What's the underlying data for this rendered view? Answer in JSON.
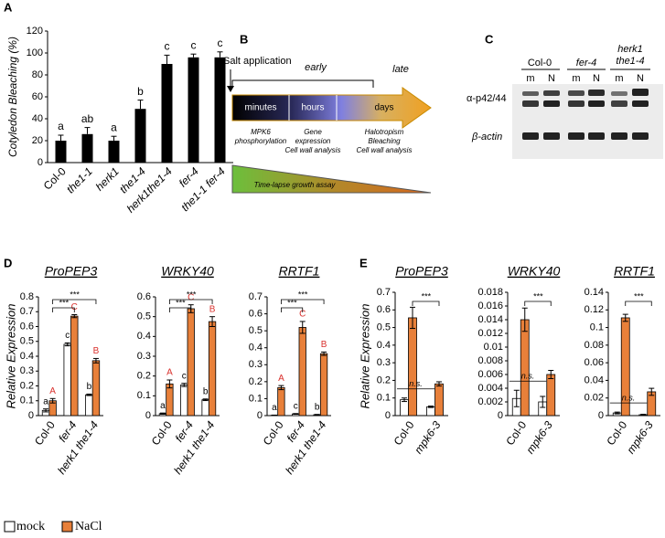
{
  "panel_labels": [
    "A",
    "B",
    "C",
    "D",
    "E"
  ],
  "diagram": {
    "start_label": "Salt application",
    "early": "early",
    "late": "late",
    "stages": [
      "minutes",
      "hours",
      "days"
    ],
    "readouts": [
      [
        "MPK6",
        "phosphorylation"
      ],
      [
        "Gene",
        "expression",
        "Cell wall analysis"
      ],
      [
        "Halotropism",
        "Bleaching",
        "Cell wall analysis"
      ]
    ],
    "assay": "Time-lapse growth assay"
  },
  "blot": {
    "genotypes": [
      [
        "Col-0"
      ],
      [
        "fer-4"
      ],
      [
        "herk1",
        "the1-4"
      ]
    ],
    "lanes": [
      "m",
      "N",
      "m",
      "N",
      "m",
      "N"
    ],
    "antibodies": [
      "α-p42/44",
      "β-actin"
    ]
  },
  "chart_data": [
    {
      "type": "bar",
      "ylabel": "Cotyledon Bleaching (%)",
      "categories": [
        "Col-0",
        "the1-1",
        "herk1",
        "the1-4",
        "herk1the1-4",
        "fer-4",
        "the1-1 fer-4"
      ],
      "values": [
        20,
        26,
        20,
        49,
        90,
        96,
        96
      ],
      "errors": [
        5,
        6,
        4,
        8,
        8,
        3,
        5
      ],
      "letters": [
        "a",
        "ab",
        "a",
        "b",
        "c",
        "c",
        "c"
      ],
      "color": "#000000",
      "ylim": [
        0,
        120
      ],
      "yticks": [
        0,
        20,
        40,
        60,
        80,
        100,
        120
      ]
    },
    {
      "type": "grouped_bar",
      "title": "ProPEP3",
      "ylabel": "Relative Expression",
      "categories": [
        "Col-0",
        "fer-4",
        "herk1 the1-4"
      ],
      "series": [
        {
          "name": "mock",
          "color": "#ffffff",
          "letter_color": "#000000",
          "values": [
            0.035,
            0.48,
            0.14
          ],
          "errors": [
            0.01,
            0.01,
            0.005
          ],
          "letters": [
            "a",
            "c",
            "b"
          ]
        },
        {
          "name": "NaCl",
          "color": "#e8803a",
          "letter_color": "#d9302c",
          "values": [
            0.1,
            0.67,
            0.37
          ],
          "errors": [
            0.015,
            0.01,
            0.015
          ],
          "letters": [
            "A",
            "C",
            "B"
          ]
        }
      ],
      "ylim": [
        0,
        0.8
      ],
      "yticks": [
        0,
        0.1,
        0.2,
        0.3,
        0.4,
        0.5,
        0.6,
        0.7,
        0.8
      ],
      "annotations": [
        "***",
        "***"
      ]
    },
    {
      "type": "grouped_bar",
      "title": "WRKY40",
      "categories": [
        "Col-0",
        "fer-4",
        "herk1 the1-4"
      ],
      "series": [
        {
          "color": "#ffffff",
          "letter_color": "#000000",
          "values": [
            0.01,
            0.155,
            0.08
          ],
          "errors": [
            0.003,
            0.008,
            0.004
          ],
          "letters": [
            "a",
            "c",
            "b"
          ]
        },
        {
          "color": "#e8803a",
          "letter_color": "#d9302c",
          "values": [
            0.16,
            0.54,
            0.475
          ],
          "errors": [
            0.02,
            0.02,
            0.025
          ],
          "letters": [
            "A",
            "C",
            "B"
          ]
        }
      ],
      "ylim": [
        0,
        0.6
      ],
      "yticks": [
        0,
        0.1,
        0.2,
        0.3,
        0.4,
        0.5,
        0.6
      ],
      "annotations": [
        "***",
        "***"
      ]
    },
    {
      "type": "grouped_bar",
      "title": "RRTF1",
      "categories": [
        "Col-0",
        "fer-4",
        "herk1 the1-4"
      ],
      "series": [
        {
          "color": "#ffffff",
          "letter_color": "#000000",
          "values": [
            0.002,
            0.01,
            0.005
          ],
          "errors": [
            0.001,
            0.002,
            0.002
          ],
          "letters": [
            "a",
            "c",
            "b"
          ]
        },
        {
          "color": "#e8803a",
          "letter_color": "#d9302c",
          "values": [
            0.165,
            0.52,
            0.365
          ],
          "errors": [
            0.012,
            0.035,
            0.01
          ],
          "letters": [
            "A",
            "C",
            "B"
          ]
        }
      ],
      "ylim": [
        0,
        0.7
      ],
      "yticks": [
        0,
        0.1,
        0.2,
        0.3,
        0.4,
        0.5,
        0.6,
        0.7
      ],
      "annotations": [
        "***",
        "***"
      ]
    },
    {
      "type": "grouped_bar",
      "title": "ProPEP3",
      "ylabel": "Relative Expression",
      "categories": [
        "Col-0",
        "mpk6-3"
      ],
      "series": [
        {
          "color": "#ffffff",
          "values": [
            0.09,
            0.05
          ],
          "errors": [
            0.01,
            0.004
          ]
        },
        {
          "color": "#e8803a",
          "values": [
            0.555,
            0.18
          ],
          "errors": [
            0.06,
            0.012
          ]
        }
      ],
      "ylim": [
        0,
        0.7
      ],
      "yticks": [
        0,
        0.1,
        0.2,
        0.3,
        0.4,
        0.5,
        0.6,
        0.7
      ],
      "annotations": [
        "n.s.",
        "***"
      ]
    },
    {
      "type": "grouped_bar",
      "title": "WRKY40",
      "categories": [
        "Col-0",
        "mpk6-3"
      ],
      "series": [
        {
          "color": "#ffffff",
          "values": [
            0.0025,
            0.002
          ],
          "errors": [
            0.0012,
            0.0008
          ]
        },
        {
          "color": "#e8803a",
          "values": [
            0.014,
            0.006
          ],
          "errors": [
            0.0017,
            0.0006
          ]
        }
      ],
      "ylim": [
        0,
        0.018
      ],
      "yticks": [
        0,
        0.002,
        0.004,
        0.006,
        0.008,
        0.01,
        0.012,
        0.014,
        0.016,
        0.018
      ],
      "annotations": [
        "n.s.",
        "***"
      ]
    },
    {
      "type": "grouped_bar",
      "title": "RRTF1",
      "categories": [
        "Col-0",
        "mpk6-3"
      ],
      "series": [
        {
          "color": "#ffffff",
          "values": [
            0.003,
            0.001
          ],
          "errors": [
            0.001,
            0.0005
          ]
        },
        {
          "color": "#e8803a",
          "values": [
            0.111,
            0.027
          ],
          "errors": [
            0.004,
            0.004
          ]
        }
      ],
      "ylim": [
        0,
        0.14
      ],
      "yticks": [
        0,
        0.02,
        0.04,
        0.06,
        0.08,
        0.1,
        0.12,
        0.14
      ],
      "annotations": [
        "n.s.",
        "***"
      ]
    }
  ]
}
